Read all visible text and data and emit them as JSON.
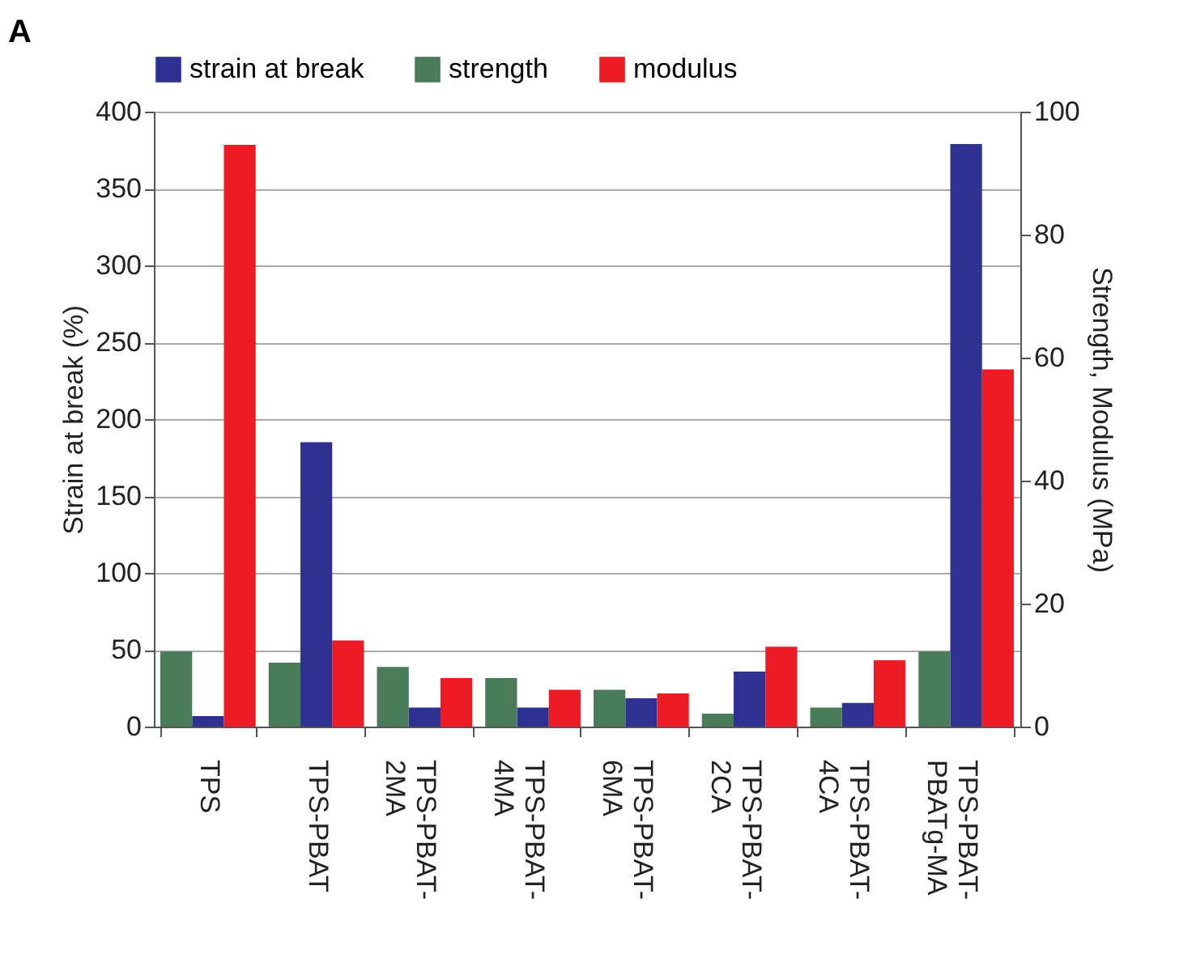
{
  "chart_data": {
    "type": "bar",
    "title": "A",
    "categories": [
      "TPS",
      "TPS-PBAT",
      "TPS-PBAT-2MA",
      "TPS-PBAT-4MA",
      "TPS-PBAT-6MA",
      "TPS-PBAT-2CA",
      "TPS-PBAT-4CA",
      "TPS-PBAT-PBATg-MA"
    ],
    "series": [
      {
        "name": "strength",
        "color": "#4a7c59",
        "axis": "y2",
        "values": [
          12.2,
          10.4,
          9.7,
          7.9,
          6.0,
          2.1,
          3.1,
          12.2
        ]
      },
      {
        "name": "strain at break",
        "color": "#2e3192",
        "values": [
          6.8,
          185,
          12.4,
          12.4,
          18.4,
          35.8,
          15.4,
          379
        ]
      },
      {
        "name": "modulus",
        "color": "#ed1c24",
        "axis": "y2",
        "values": [
          94.6,
          14.0,
          7.9,
          6.0,
          5.4,
          13.0,
          10.8,
          58.1
        ]
      }
    ],
    "ylabel": "Strain at break (%)",
    "y2label": "Strength, Modulus (MPa)",
    "ylim": [
      0,
      400
    ],
    "yticks": [
      0,
      50,
      100,
      150,
      200,
      250,
      300,
      350,
      400
    ],
    "y2lim": [
      0,
      100
    ],
    "y2ticks": [
      0,
      20,
      40,
      60,
      80,
      100
    ],
    "grid": "y",
    "legend": "top"
  }
}
